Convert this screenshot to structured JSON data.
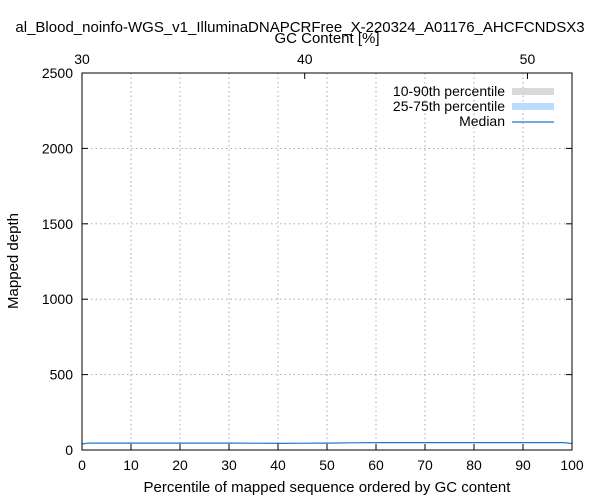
{
  "chart_data": {
    "type": "line",
    "title": "al_Blood_noinfo-WGS_v1_IlluminaDNAPCRFree_X-220324_A01176_AHCFCNDSX3",
    "top_axis_title": "GC Content [%]",
    "xlabel": "Percentile of mapped sequence ordered by GC content",
    "ylabel": "Mapped depth",
    "xlim": [
      0,
      100
    ],
    "ylim": [
      0,
      2500
    ],
    "top_xlim": [
      30,
      52
    ],
    "xticks": [
      0,
      10,
      20,
      30,
      40,
      50,
      60,
      70,
      80,
      90,
      100
    ],
    "yticks": [
      0,
      500,
      1000,
      1500,
      2000,
      2500
    ],
    "top_xticks": [
      30,
      40,
      50
    ],
    "grid": true,
    "legend_position": "top-right",
    "legend": [
      {
        "label": "10-90th percentile",
        "color": "#d9d9d9",
        "kind": "band"
      },
      {
        "label": "25-75th percentile",
        "color": "#b9dcff",
        "kind": "band"
      },
      {
        "label": "Median",
        "color": "#1f77d0",
        "kind": "line"
      }
    ],
    "series": [
      {
        "name": "Median",
        "x": [
          0,
          1,
          2,
          5,
          10,
          15,
          20,
          25,
          30,
          35,
          40,
          45,
          50,
          55,
          60,
          65,
          70,
          75,
          80,
          85,
          90,
          95,
          98,
          99,
          100
        ],
        "values": [
          40,
          45,
          46,
          46,
          46,
          46,
          46,
          46,
          46,
          45,
          44,
          45,
          46,
          48,
          49,
          49,
          49,
          49,
          49,
          49,
          49,
          49,
          49,
          47,
          42
        ]
      }
    ]
  }
}
